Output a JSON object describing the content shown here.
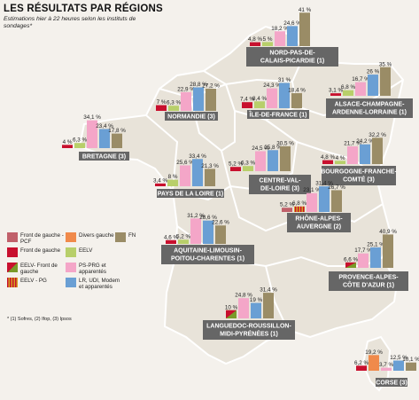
{
  "header": {
    "title": "LES RÉSULTATS PAR RÉGIONS",
    "subtitle": "Estimations hier à 22 heures selon les instituts de sondages*"
  },
  "footnote": "* (1) Sofres, (2) Ifop, (3) Ipsos",
  "colors": {
    "fg_pcf": "#c0606a",
    "fdg": "#c8102e",
    "eelv_fdg": "#7a9a2a",
    "eelv_pg": "#d4a020",
    "divers_gauche": "#f08a4b",
    "eelv": "#b8cf6a",
    "ps_prg": "#f4a6c8",
    "lr_udi_modem": "#6a9fd4",
    "fn": "#9a8c66",
    "region_label_bg": "#666666",
    "map_bg": "#eae5dc",
    "page_bg": "#f4f1ec"
  },
  "legend": {
    "items": [
      {
        "key": "fg_pcf",
        "label": "Front de gauche - PCF"
      },
      {
        "key": "divers_gauche",
        "label": "Divers gauche"
      },
      {
        "key": "fn",
        "label": "FN"
      },
      {
        "key": "fdg",
        "label": "Front de gauche"
      },
      {
        "key": "eelv",
        "label": "EELV"
      },
      {
        "key": "eelv_fdg",
        "label": "EELV- Front de gauche"
      },
      {
        "key": "ps_prg",
        "label": "PS-PRG et apparentés"
      },
      {
        "key": "eelv_pg",
        "label": "EELV - PG"
      },
      {
        "key": "lr_udi_modem",
        "label": "LR, UDI, Modem et apparentés"
      }
    ]
  },
  "chart_data": {
    "type": "bar",
    "title": "LES RÉSULTATS PAR RÉGIONS",
    "unit": "%",
    "regions": [
      {
        "name": "NORD-PAS-DE-CALAIS-PICARDIE",
        "note": "(1)",
        "bars": [
          {
            "party": "fdg",
            "value": 4.8
          },
          {
            "party": "eelv",
            "value": 5
          },
          {
            "party": "ps_prg",
            "value": 18.2
          },
          {
            "party": "lr_udi_modem",
            "value": 24.6
          },
          {
            "party": "fn",
            "value": 41
          }
        ],
        "labels": [
          "4,8 %",
          "5 %",
          "18,2 %",
          "24,6 %",
          "41 %"
        ]
      },
      {
        "name": "NORMANDIE",
        "note": "(3)",
        "bars": [
          {
            "party": "fdg",
            "value": 7
          },
          {
            "party": "eelv",
            "value": 6.3
          },
          {
            "party": "ps_prg",
            "value": 22.9
          },
          {
            "party": "lr_udi_modem",
            "value": 28.8
          },
          {
            "party": "fn",
            "value": 27.2
          }
        ],
        "labels": [
          "7 %",
          "6,3 %",
          "22,9 %",
          "28,8 %",
          "27,2 %"
        ]
      },
      {
        "name": "ÎLE-DE-FRANCE",
        "note": "(1)",
        "bars": [
          {
            "party": "fdg",
            "value": 7.4
          },
          {
            "party": "eelv",
            "value": 8.4
          },
          {
            "party": "ps_prg",
            "value": 24.3
          },
          {
            "party": "lr_udi_modem",
            "value": 31
          },
          {
            "party": "fn",
            "value": 18.4
          }
        ],
        "labels": [
          "7,4 %",
          "8,4 %",
          "24,3 %",
          "31 %",
          "18,4 %"
        ]
      },
      {
        "name": "ALSACE-CHAMPAGNE-ARDENNE-LORRAINE",
        "note": "(1)",
        "bars": [
          {
            "party": "fdg",
            "value": 3.1
          },
          {
            "party": "eelv",
            "value": 6.8
          },
          {
            "party": "ps_prg",
            "value": 16.7
          },
          {
            "party": "lr_udi_modem",
            "value": 26
          },
          {
            "party": "fn",
            "value": 35
          }
        ],
        "labels": [
          "3,1 %",
          "6,8 %",
          "16,7 %",
          "26 %",
          "35 %"
        ]
      },
      {
        "name": "BRETAGNE",
        "note": "(3)",
        "bars": [
          {
            "party": "fdg",
            "value": 4
          },
          {
            "party": "eelv",
            "value": 6.3
          },
          {
            "party": "ps_prg",
            "value": 34.1
          },
          {
            "party": "lr_udi_modem",
            "value": 23.4
          },
          {
            "party": "fn",
            "value": 17.8
          }
        ],
        "labels": [
          "4 %",
          "6,3 %",
          "34,1 %",
          "23,4 %",
          "17,8 %"
        ]
      },
      {
        "name": "PAYS DE LA LOIRE",
        "note": "(1)",
        "bars": [
          {
            "party": "fdg",
            "value": 3.4
          },
          {
            "party": "eelv",
            "value": 8
          },
          {
            "party": "ps_prg",
            "value": 25.6
          },
          {
            "party": "lr_udi_modem",
            "value": 33.4
          },
          {
            "party": "fn",
            "value": 21.3
          }
        ],
        "labels": [
          "3,4 %",
          "8 %",
          "25,6 %",
          "33,4 %",
          "21,3 %"
        ]
      },
      {
        "name": "CENTRE-VAL-DE-LOIRE",
        "note": "(3)",
        "bars": [
          {
            "party": "fdg",
            "value": 5.2
          },
          {
            "party": "eelv",
            "value": 6.3
          },
          {
            "party": "ps_prg",
            "value": 24.5
          },
          {
            "party": "lr_udi_modem",
            "value": 25.8
          },
          {
            "party": "fn",
            "value": 30.5
          }
        ],
        "labels": [
          "5,2 %",
          "6,3 %",
          "24,5 %",
          "25,8 %",
          "30,5 %"
        ]
      },
      {
        "name": "BOURGOGNE-FRANCHE-COMTÉ",
        "note": "(3)",
        "bars": [
          {
            "party": "fdg",
            "value": 4.8
          },
          {
            "party": "eelv",
            "value": 4
          },
          {
            "party": "ps_prg",
            "value": 21.7
          },
          {
            "party": "lr_udi_modem",
            "value": 24.2
          },
          {
            "party": "fn",
            "value": 32.2
          }
        ],
        "labels": [
          "4,8 %",
          "4 %",
          "21,7 %",
          "24,2 %",
          "32,2 %"
        ]
      },
      {
        "name": "AQUITAINE-LIMOUSIN-POITOU-CHARENTES",
        "note": "(1)",
        "bars": [
          {
            "party": "fdg",
            "value": 4.6
          },
          {
            "party": "eelv",
            "value": 5.2
          },
          {
            "party": "ps_prg",
            "value": 31.2
          },
          {
            "party": "lr_udi_modem",
            "value": 28.6
          },
          {
            "party": "fn",
            "value": 22.6
          }
        ],
        "labels": [
          "4,6 %",
          "5,2 %",
          "31,2 %",
          "28,6 %",
          "22,6 %"
        ]
      },
      {
        "name": "RHÔNE-ALPES-AUVERGNE",
        "note": "(2)",
        "bars": [
          {
            "party": "fg_pcf",
            "value": 5.2
          },
          {
            "party": "eelv_pg",
            "value": 6.8
          },
          {
            "party": "ps_prg",
            "value": 23.1
          },
          {
            "party": "lr_udi_modem",
            "value": 31.4
          },
          {
            "party": "fn",
            "value": 26.7
          }
        ],
        "labels": [
          "5,2 %",
          "6,8 %",
          "23,1 %",
          "31,4 %",
          "26,7 %"
        ]
      },
      {
        "name": "LANGUEDOC-ROUSSILLON-MIDI-PYRÉNÉES",
        "note": "(1)",
        "bars": [
          {
            "party": "eelv_fdg",
            "value": 10
          },
          {
            "party": "ps_prg",
            "value": 24.8
          },
          {
            "party": "lr_udi_modem",
            "value": 19
          },
          {
            "party": "fn",
            "value": 31.4
          }
        ],
        "labels": [
          "10 %",
          "24,8 %",
          "19 %",
          "31,4 %"
        ]
      },
      {
        "name": "PROVENCE-ALPES-CÔTE D'AZUR",
        "note": "(1)",
        "bars": [
          {
            "party": "eelv_fdg",
            "value": 6.6
          },
          {
            "party": "ps_prg",
            "value": 17.7
          },
          {
            "party": "lr_udi_modem",
            "value": 25.1
          },
          {
            "party": "fn",
            "value": 40.9
          }
        ],
        "labels": [
          "6,6 %",
          "17,7 %",
          "25,1 %",
          "40,9 %"
        ]
      },
      {
        "name": "CORSE",
        "note": "(3)",
        "bars": [
          {
            "party": "fdg",
            "value": 6.2
          },
          {
            "party": "divers_gauche",
            "value": 19.2
          },
          {
            "party": "ps_prg",
            "value": 3.7
          },
          {
            "party": "lr_udi_modem",
            "value": 12.5
          },
          {
            "party": "fn",
            "value": 10.1
          }
        ],
        "labels": [
          "6,2 %",
          "19,2 %",
          "3,7 %",
          "12,5 %",
          "10,1 %"
        ]
      }
    ]
  }
}
